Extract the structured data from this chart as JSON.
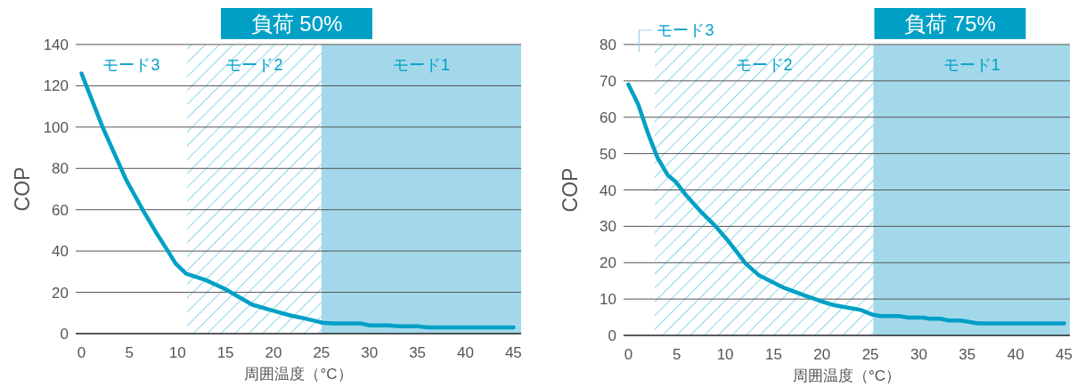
{
  "chart_data": [
    {
      "type": "line",
      "title": "負荷 50%",
      "xlabel": "周囲温度（°C）",
      "ylabel": "COP",
      "xlim": [
        -0.6,
        45.8
      ],
      "xticks": [
        0,
        5,
        10,
        15,
        20,
        25,
        30,
        35,
        40,
        45
      ],
      "ylim": [
        0,
        140
      ],
      "yticks": [
        0,
        20,
        40,
        60,
        80,
        100,
        120,
        140
      ],
      "grid": "y",
      "annotations": [
        "モード3"
      ],
      "x": [
        0,
        2.2,
        4.7,
        6.5,
        7.9,
        9.0,
        9.8,
        10.9,
        12.9,
        14.8,
        16.1,
        17.8,
        20,
        21.9,
        23.2,
        24.2,
        25.1,
        26.1,
        29,
        30,
        32,
        33.1,
        35,
        36,
        45
      ],
      "series": [
        {
          "color": "#00a0c6",
          "values": [
            126,
            100,
            74,
            59,
            48,
            40,
            34,
            29,
            26,
            22,
            18.5,
            14,
            11,
            8.6,
            7.4,
            6.3,
            5.3,
            5,
            5,
            4,
            4,
            3.6,
            3.6,
            3,
            3
          ]
        }
      ],
      "bands": [
        {
          "axis": "x",
          "from": 11,
          "to": 25,
          "label": "モード2",
          "color": "#4dbfdc"
        },
        {
          "axis": "x",
          "from": 25,
          "to": 45.8,
          "label": "モード1",
          "color": "#a2d8ea"
        }
      ]
    },
    {
      "type": "line",
      "title": "負荷 75%",
      "xlabel": "周囲温度（°C）",
      "ylabel": "COP",
      "xlim": [
        -0.5,
        45.6
      ],
      "xticks": [
        0,
        5,
        10,
        15,
        20,
        25,
        30,
        35,
        40,
        45
      ],
      "ylim": [
        0,
        80
      ],
      "yticks": [
        0,
        10,
        20,
        30,
        40,
        50,
        60,
        70,
        80
      ],
      "grid": "y",
      "annotations": [
        "モード3"
      ],
      "x": [
        0,
        1,
        2.1,
        3,
        4.05,
        4.9,
        6,
        7.45,
        8.9,
        10.3,
        12.1,
        13.5,
        16.05,
        18.2,
        20,
        21.1,
        22.5,
        24,
        25.2,
        26.1,
        27.9,
        28.95,
        30.4,
        31.1,
        32.2,
        33.1,
        34.3,
        36.1,
        45
      ],
      "series": [
        {
          "color": "#00a0c6",
          "values": [
            69,
            63.6,
            55,
            48.9,
            44.1,
            42.2,
            38.4,
            34.1,
            30.3,
            26,
            19.8,
            16.5,
            13.1,
            11,
            9.3,
            8.4,
            7.7,
            7,
            5.7,
            5.3,
            5.3,
            4.9,
            4.9,
            4.6,
            4.6,
            4.1,
            4.1,
            3.3,
            3.3
          ]
        }
      ],
      "bands": [
        {
          "axis": "x",
          "from": 2.7,
          "to": 25.3,
          "label": "モード2",
          "color": "#4dbfdc"
        },
        {
          "axis": "x",
          "from": 25.3,
          "to": 45.6,
          "label": "モード1",
          "color": "#a2d8ea"
        }
      ]
    }
  ]
}
